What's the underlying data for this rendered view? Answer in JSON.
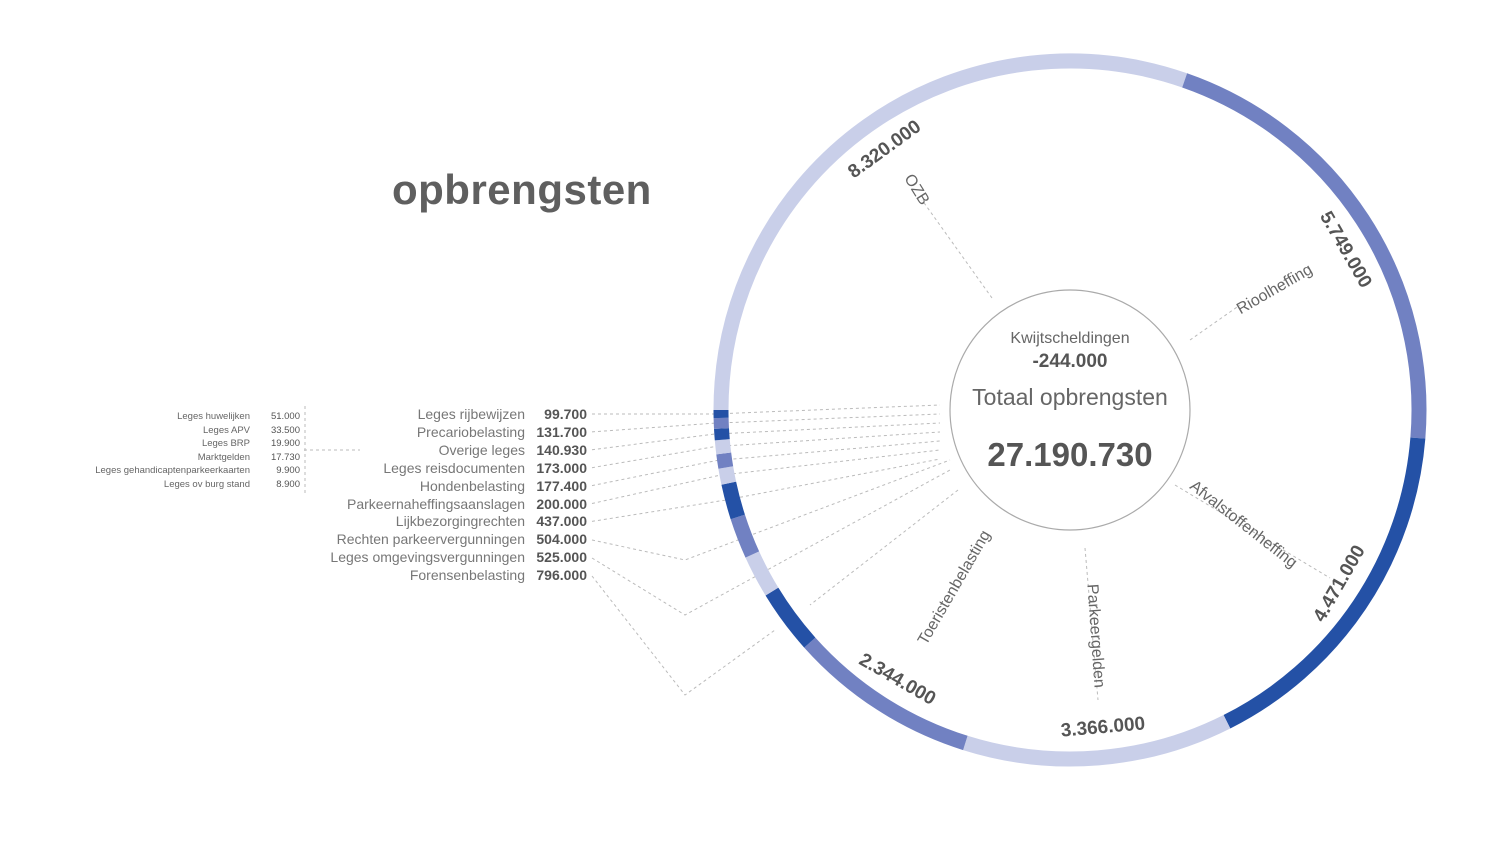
{
  "title": "opbrengsten",
  "center": {
    "deduction_label": "Kwijtscheldingen",
    "deduction_value": "-244.000",
    "total_label": "Totaal opbrengsten",
    "total_value": "27.190.730"
  },
  "colors": {
    "light": "#c9cfe9",
    "medium": "#7181c2",
    "dark": "#2451a6",
    "text": "#666666"
  },
  "chart_data": {
    "type": "pie",
    "variant": "donut",
    "title": "opbrengsten",
    "total": 27190730,
    "deduction": {
      "label": "Kwijtscheldingen",
      "value": -244000
    },
    "slices": [
      {
        "label": "OZB",
        "value": 8320000,
        "value_label": "8.320.000",
        "shade": "light"
      },
      {
        "label": "Rioolheffing",
        "value": 5749000,
        "value_label": "5.749.000",
        "shade": "medium"
      },
      {
        "label": "Afvalstoffenheffing",
        "value": 4471000,
        "value_label": "4.471.000",
        "shade": "dark"
      },
      {
        "label": "Parkeergelden",
        "value": 3366000,
        "value_label": "3.366.000",
        "shade": "light"
      },
      {
        "label": "Toeristenbelasting",
        "value": 2344000,
        "value_label": "2.344.000",
        "shade": "medium"
      },
      {
        "label": "Forensenbelasting",
        "value": 796000,
        "value_label": "796.000",
        "shade": "dark"
      },
      {
        "label": "Leges omgevingsvergunningen",
        "value": 525000,
        "value_label": "525.000",
        "shade": "light"
      },
      {
        "label": "Rechten parkeervergunningen",
        "value": 504000,
        "value_label": "504.000",
        "shade": "medium"
      },
      {
        "label": "Lijkbezorgingrechten",
        "value": 437000,
        "value_label": "437.000",
        "shade": "dark"
      },
      {
        "label": "Parkeernaheffingsaanslagen",
        "value": 200000,
        "value_label": "200.000",
        "shade": "light"
      },
      {
        "label": "Hondenbelasting",
        "value": 177400,
        "value_label": "177.400",
        "shade": "medium"
      },
      {
        "label": "Leges reisdocumenten",
        "value": 173000,
        "value_label": "173.000",
        "shade": "light"
      },
      {
        "label": "Overige leges",
        "value": 140930,
        "value_label": "140.930",
        "shade": "dark"
      },
      {
        "label": "Precariobelasting",
        "value": 131700,
        "value_label": "131.700",
        "shade": "medium"
      },
      {
        "label": "Leges rijbewijzen",
        "value": 99700,
        "value_label": "99.700",
        "shade": "dark"
      }
    ],
    "overige_leges_breakdown": [
      {
        "label": "Leges huwelijken",
        "value": 51000,
        "value_label": "51.000"
      },
      {
        "label": "Leges APV",
        "value": 33500,
        "value_label": "33.500"
      },
      {
        "label": "Leges BRP",
        "value": 19900,
        "value_label": "19.900"
      },
      {
        "label": "Marktgelden",
        "value": 17730,
        "value_label": "17.730"
      },
      {
        "label": "Leges gehandicaptenparkeerkaarten",
        "value": 9900,
        "value_label": "9.900"
      },
      {
        "label": "Leges ov burg stand",
        "value": 8900,
        "value_label": "8.900"
      }
    ]
  }
}
